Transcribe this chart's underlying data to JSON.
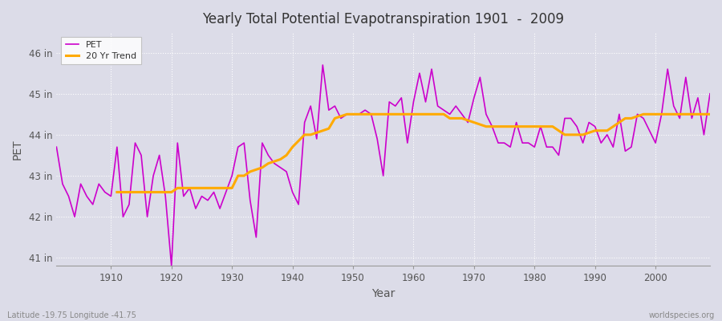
{
  "title": "Yearly Total Potential Evapotranspiration 1901  -  2009",
  "xlabel": "Year",
  "ylabel": "PET",
  "footnote_left": "Latitude -19.75 Longitude -41.75",
  "footnote_right": "worldspecies.org",
  "background_color": "#dcdce8",
  "plot_bg_color": "#dcdce8",
  "pet_color": "#cc00cc",
  "trend_color": "#ffaa00",
  "ylim_min": 40.8,
  "ylim_max": 46.5,
  "ytick_labels": [
    "41 in",
    "42 in",
    "43 in",
    "44 in",
    "45 in",
    "46 in"
  ],
  "ytick_values": [
    41,
    42,
    43,
    44,
    45,
    46
  ],
  "years": [
    1901,
    1902,
    1903,
    1904,
    1905,
    1906,
    1907,
    1908,
    1909,
    1910,
    1911,
    1912,
    1913,
    1914,
    1915,
    1916,
    1917,
    1918,
    1919,
    1920,
    1921,
    1922,
    1923,
    1924,
    1925,
    1926,
    1927,
    1928,
    1929,
    1930,
    1931,
    1932,
    1933,
    1934,
    1935,
    1936,
    1937,
    1938,
    1939,
    1940,
    1941,
    1942,
    1943,
    1944,
    1945,
    1946,
    1947,
    1948,
    1949,
    1950,
    1951,
    1952,
    1953,
    1954,
    1955,
    1956,
    1957,
    1958,
    1959,
    1960,
    1961,
    1962,
    1963,
    1964,
    1965,
    1966,
    1967,
    1968,
    1969,
    1970,
    1971,
    1972,
    1973,
    1974,
    1975,
    1976,
    1977,
    1978,
    1979,
    1980,
    1981,
    1982,
    1983,
    1984,
    1985,
    1986,
    1987,
    1988,
    1989,
    1990,
    1991,
    1992,
    1993,
    1994,
    1995,
    1996,
    1997,
    1998,
    1999,
    2000,
    2001,
    2002,
    2003,
    2004,
    2005,
    2006,
    2007,
    2008,
    2009
  ],
  "pet_values": [
    43.7,
    42.8,
    42.5,
    42.0,
    42.8,
    42.5,
    42.3,
    42.8,
    42.6,
    42.5,
    43.7,
    42.0,
    42.3,
    43.8,
    43.5,
    42.0,
    43.0,
    43.5,
    42.5,
    40.8,
    43.8,
    42.5,
    42.7,
    42.2,
    42.5,
    42.4,
    42.6,
    42.2,
    42.6,
    43.0,
    43.7,
    43.8,
    42.4,
    41.5,
    43.8,
    43.5,
    43.3,
    43.2,
    43.1,
    42.6,
    42.3,
    44.3,
    44.7,
    43.9,
    45.7,
    44.6,
    44.7,
    44.4,
    44.5,
    44.5,
    44.5,
    44.6,
    44.5,
    43.9,
    43.0,
    44.8,
    44.7,
    44.9,
    43.8,
    44.8,
    45.5,
    44.8,
    45.6,
    44.7,
    44.6,
    44.5,
    44.7,
    44.5,
    44.3,
    44.9,
    45.4,
    44.5,
    44.2,
    43.8,
    43.8,
    43.7,
    44.3,
    43.8,
    43.8,
    43.7,
    44.2,
    43.7,
    43.7,
    43.5,
    44.4,
    44.4,
    44.2,
    43.8,
    44.3,
    44.2,
    43.8,
    44.0,
    43.7,
    44.5,
    43.6,
    43.7,
    44.5,
    44.4,
    44.1,
    43.8,
    44.5,
    45.6,
    44.7,
    44.4,
    45.4,
    44.4,
    44.9,
    44.0,
    45.0
  ],
  "trend_values": [
    null,
    null,
    null,
    null,
    null,
    null,
    null,
    null,
    null,
    null,
    42.6,
    42.6,
    42.6,
    42.6,
    42.6,
    42.6,
    42.6,
    42.6,
    42.6,
    42.6,
    42.7,
    42.7,
    42.7,
    42.7,
    42.7,
    42.7,
    42.7,
    42.7,
    42.7,
    42.7,
    43.0,
    43.0,
    43.1,
    43.15,
    43.2,
    43.3,
    43.35,
    43.4,
    43.5,
    43.7,
    43.85,
    44.0,
    44.0,
    44.05,
    44.1,
    44.15,
    44.4,
    44.45,
    44.5,
    44.5,
    44.5,
    44.5,
    44.5,
    44.5,
    44.5,
    44.5,
    44.5,
    44.5,
    44.5,
    44.5,
    44.5,
    44.5,
    44.5,
    44.5,
    44.5,
    44.4,
    44.4,
    44.4,
    44.35,
    44.3,
    44.25,
    44.2,
    44.2,
    44.2,
    44.2,
    44.2,
    44.2,
    44.2,
    44.2,
    44.2,
    44.2,
    44.2,
    44.2,
    44.1,
    44.0,
    44.0,
    44.0,
    44.0,
    44.05,
    44.1,
    44.1,
    44.1,
    44.2,
    44.3,
    44.4,
    44.4,
    44.45,
    44.5,
    44.5,
    44.5,
    44.5,
    44.5,
    44.5,
    44.5,
    44.5,
    44.5,
    44.5,
    44.5,
    44.5
  ]
}
